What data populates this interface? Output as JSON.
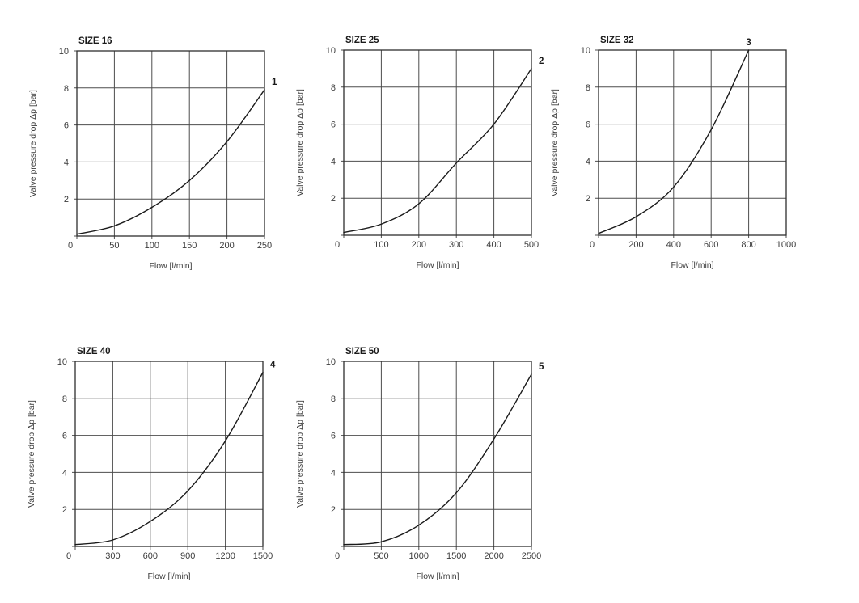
{
  "page": {
    "background": "#ffffff"
  },
  "colors": {
    "grid": "#4d4d4d",
    "border": "#2e2e2e",
    "curve": "#1a1a1a",
    "text": "#3c3c3c",
    "title": "#1a1a1a"
  },
  "chart_data": [
    {
      "type": "line",
      "title": "SIZE 16",
      "curve_label": "1",
      "curve_label_position": "right",
      "xlabel": "Flow [l/min]",
      "ylabel": "Valve pressure drop Δp [bar]",
      "xlim": [
        0,
        250
      ],
      "ylim": [
        0,
        10
      ],
      "xticks": [
        0,
        50,
        100,
        150,
        200,
        250
      ],
      "yticks": [
        0,
        2,
        4,
        6,
        8,
        10
      ],
      "grid": true,
      "points": [
        [
          0,
          0.1
        ],
        [
          50,
          0.55
        ],
        [
          100,
          1.55
        ],
        [
          150,
          3.0
        ],
        [
          200,
          5.1
        ],
        [
          250,
          7.9
        ]
      ]
    },
    {
      "type": "line",
      "title": "SIZE 25",
      "curve_label": "2",
      "curve_label_position": "right",
      "xlabel": "Flow [l/min]",
      "ylabel": "Valve pressure drop Δp [bar]",
      "xlim": [
        0,
        500
      ],
      "ylim": [
        0,
        10
      ],
      "xticks": [
        0,
        100,
        200,
        300,
        400,
        500
      ],
      "yticks": [
        0,
        2,
        4,
        6,
        8,
        10
      ],
      "grid": true,
      "points": [
        [
          0,
          0.15
        ],
        [
          100,
          0.6
        ],
        [
          200,
          1.7
        ],
        [
          300,
          3.9
        ],
        [
          400,
          6.0
        ],
        [
          500,
          9.0
        ]
      ]
    },
    {
      "type": "line",
      "title": "SIZE 32",
      "curve_label": "3",
      "curve_label_position": "top",
      "xlabel": "Flow [l/min]",
      "ylabel": "Valve pressure drop Δp [bar]",
      "xlim": [
        0,
        1000
      ],
      "ylim": [
        0,
        10
      ],
      "xticks": [
        0,
        200,
        400,
        600,
        800,
        1000
      ],
      "yticks": [
        0,
        2,
        4,
        6,
        8,
        10
      ],
      "grid": true,
      "points": [
        [
          0,
          0.1
        ],
        [
          200,
          1.0
        ],
        [
          400,
          2.6
        ],
        [
          600,
          5.7
        ],
        [
          800,
          10.0
        ]
      ]
    },
    {
      "type": "line",
      "title": "SIZE 40",
      "curve_label": "4",
      "curve_label_position": "right",
      "xlabel": "Flow [l/min]",
      "ylabel": "Valve pressure drop Δp [bar]",
      "xlim": [
        0,
        1500
      ],
      "ylim": [
        0,
        10
      ],
      "xticks": [
        0,
        300,
        600,
        900,
        1200,
        1500
      ],
      "yticks": [
        0,
        2,
        4,
        6,
        8,
        10
      ],
      "grid": true,
      "points": [
        [
          0,
          0.1
        ],
        [
          300,
          0.35
        ],
        [
          600,
          1.35
        ],
        [
          900,
          3.0
        ],
        [
          1200,
          5.7
        ],
        [
          1500,
          9.4
        ]
      ]
    },
    {
      "type": "line",
      "title": "SIZE 50",
      "curve_label": "5",
      "curve_label_position": "right",
      "xlabel": "Flow [l/min]",
      "ylabel": "Valve pressure drop Δp [bar]",
      "xlim": [
        0,
        2500
      ],
      "ylim": [
        0,
        10
      ],
      "xticks": [
        0,
        500,
        1000,
        1500,
        2000,
        2500
      ],
      "yticks": [
        0,
        2,
        4,
        6,
        8,
        10
      ],
      "grid": true,
      "points": [
        [
          0,
          0.1
        ],
        [
          500,
          0.25
        ],
        [
          1000,
          1.15
        ],
        [
          1500,
          2.9
        ],
        [
          2000,
          5.8
        ],
        [
          2500,
          9.3
        ]
      ]
    }
  ]
}
